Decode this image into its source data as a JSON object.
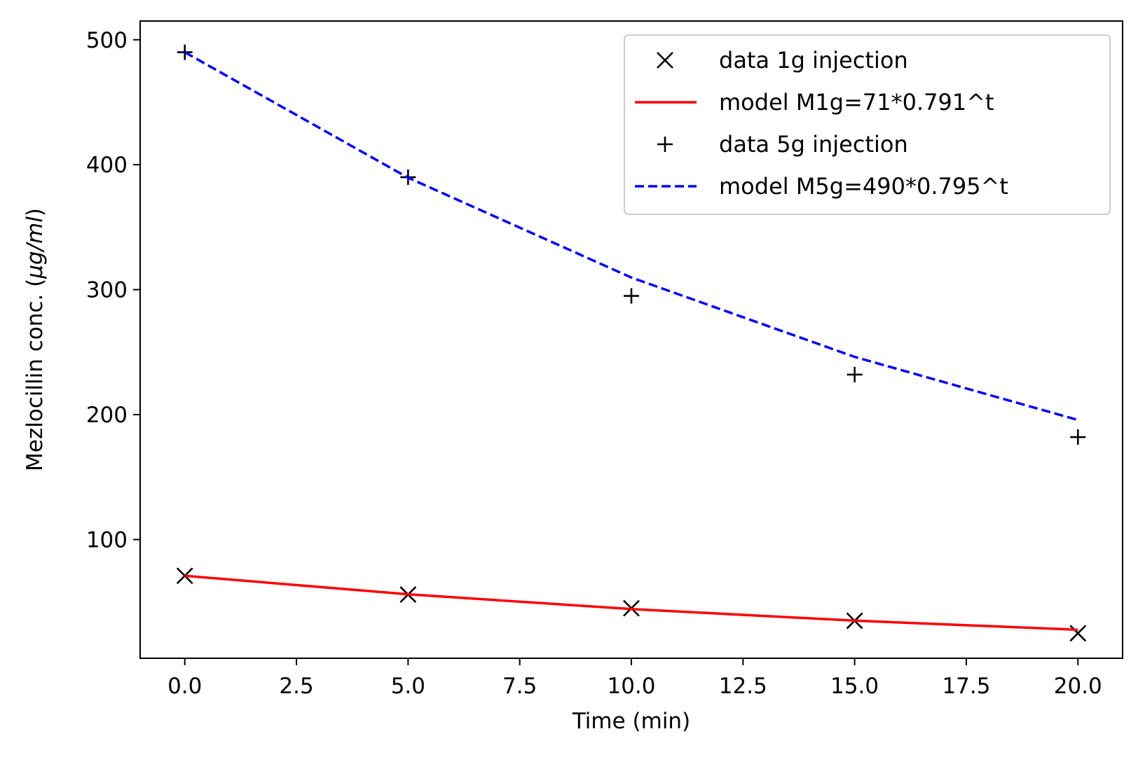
{
  "chart_data": {
    "type": "line",
    "xlabel": "Time (min)",
    "ylabel": {
      "prefix": "Mezlocillin conc. (",
      "unit": "μg/ml",
      "suffix": ")"
    },
    "xlim": [
      -1,
      21
    ],
    "ylim": [
      5,
      515
    ],
    "x_ticks": [
      0,
      2.5,
      5,
      7.5,
      10,
      12.5,
      15,
      17.5,
      20
    ],
    "x_tick_labels": [
      "0.0",
      "2.5",
      "5.0",
      "7.5",
      "10.0",
      "12.5",
      "15.0",
      "17.5",
      "20.0"
    ],
    "y_ticks": [
      100,
      200,
      300,
      400,
      500
    ],
    "y_tick_labels": [
      "100",
      "200",
      "300",
      "400",
      "500"
    ],
    "grid": false,
    "legend_position": "top-right",
    "series": [
      {
        "name": "data 1g injection",
        "kind": "marker",
        "marker": "x",
        "color": "#000000",
        "x": [
          0,
          5,
          10,
          15,
          20
        ],
        "y": [
          71,
          56,
          45,
          35,
          25
        ]
      },
      {
        "name": "model M1g=71*0.791^t",
        "kind": "line",
        "style": "solid",
        "color": "#ff0000",
        "x": [
          0,
          5,
          10,
          15,
          20
        ],
        "y": [
          71,
          56.2,
          44.4,
          35.1,
          27.8
        ]
      },
      {
        "name": "data 5g injection",
        "kind": "marker",
        "marker": "+",
        "color": "#000000",
        "x": [
          0,
          5,
          10,
          15,
          20
        ],
        "y": [
          490,
          390,
          295,
          232,
          182
        ]
      },
      {
        "name": "model M5g=490*0.795^t",
        "kind": "line",
        "style": "dashed",
        "color": "#0000ff",
        "x": [
          0,
          5,
          10,
          15,
          20
        ],
        "y": [
          490,
          389.6,
          309.7,
          246.2,
          195.7
        ]
      }
    ]
  }
}
